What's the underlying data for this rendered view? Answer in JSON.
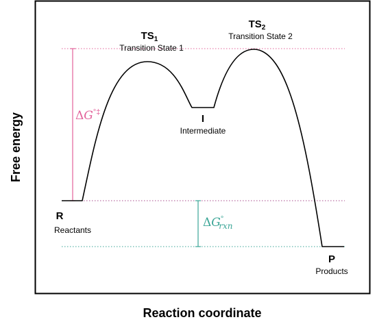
{
  "axes": {
    "y_label": "Free energy",
    "x_label": "Reaction coordinate"
  },
  "states": {
    "reactants": {
      "symbol": "R",
      "name": "Reactants"
    },
    "ts1": {
      "symbol": "TS",
      "subscript": "1",
      "name": "Transition State 1"
    },
    "intermediate": {
      "symbol": "I",
      "name": "Intermediate"
    },
    "ts2": {
      "symbol": "TS",
      "subscript": "2",
      "name": "Transition State 2"
    },
    "products": {
      "symbol": "P",
      "name": "Products"
    }
  },
  "annotations": {
    "activation": {
      "delta": "Δ",
      "var": "G",
      "sup": "°‡",
      "color": "#e2619a"
    },
    "reaction": {
      "delta": "Δ",
      "var": "G",
      "sup": "°",
      "sub": "rxn",
      "color": "#3aa596"
    }
  },
  "colors": {
    "curve": "#000000",
    "frame": "#000000",
    "ts_guide": "#e2619a",
    "products_guide": "#3aa596"
  }
}
